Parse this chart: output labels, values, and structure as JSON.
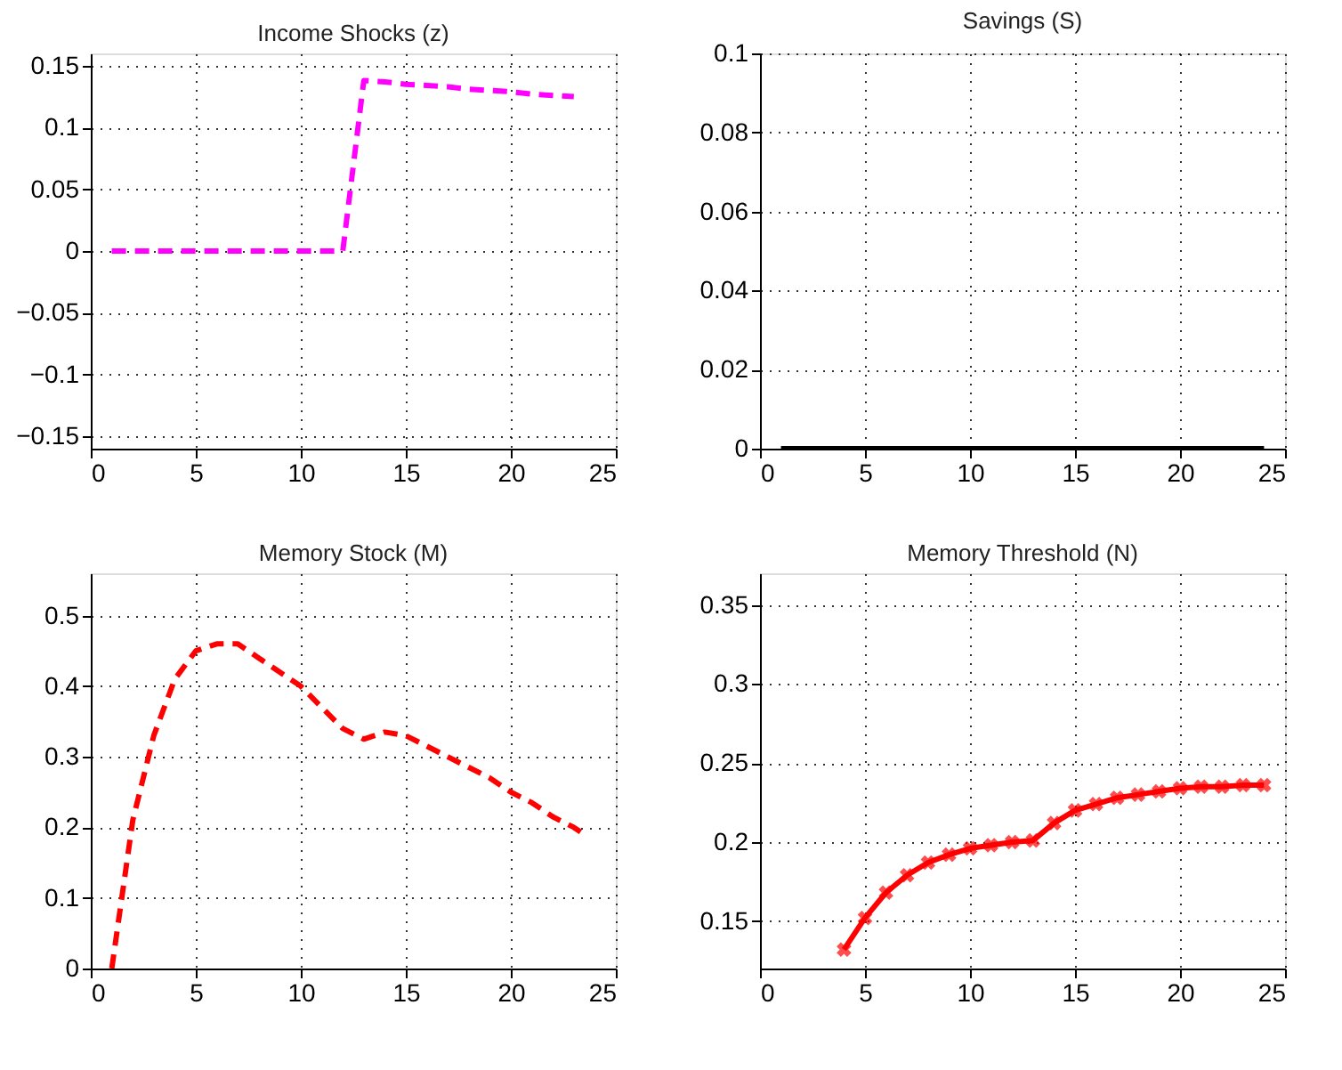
{
  "chart_data": [
    {
      "type": "line",
      "title": "Income Shocks (z)",
      "x": [
        1,
        2,
        3,
        4,
        5,
        6,
        7,
        8,
        9,
        10,
        11,
        12,
        13,
        14,
        15,
        16,
        17,
        18,
        19,
        20,
        21,
        22,
        23
      ],
      "series": [
        {
          "color": "#ff00ff",
          "values": [
            0,
            0,
            0,
            0,
            0,
            0,
            0,
            0,
            0,
            0,
            0,
            0,
            0.138,
            0.137,
            0.135,
            0.134,
            0.133,
            0.131,
            0.13,
            0.129,
            0.127,
            0.126,
            0.125
          ]
        }
      ],
      "xlim": [
        0,
        25
      ],
      "xticks": [
        0,
        5,
        10,
        15,
        20,
        25
      ],
      "ylim": [
        -0.16,
        0.16
      ],
      "yticks": [
        -0.15,
        -0.1,
        -0.05,
        0,
        0.05,
        0.1,
        0.15
      ],
      "grid": true,
      "line_style": "dashed",
      "marker": "none"
    },
    {
      "type": "line",
      "title": "Savings (S)",
      "x": [
        1,
        2,
        3,
        4,
        5,
        6,
        7,
        8,
        9,
        10,
        11,
        12,
        13,
        14,
        15,
        16,
        17,
        18,
        19,
        20,
        21,
        22,
        23,
        24
      ],
      "series": [
        {
          "color": "#000000",
          "values": [
            0,
            0,
            0,
            0,
            0,
            0,
            0,
            0,
            0,
            0,
            0,
            0,
            0,
            0,
            0,
            0,
            0,
            0,
            0,
            0,
            0,
            0,
            0,
            0
          ]
        }
      ],
      "xlim": [
        0,
        25
      ],
      "xticks": [
        0,
        5,
        10,
        15,
        20,
        25
      ],
      "ylim": [
        0,
        0.1
      ],
      "yticks": [
        0,
        0.02,
        0.04,
        0.06,
        0.08,
        0.1
      ],
      "grid": true,
      "line_style": "solid",
      "marker": "none"
    },
    {
      "type": "line",
      "title": "Memory Stock (M)",
      "x": [
        1,
        2,
        3,
        4,
        5,
        6,
        7,
        8,
        9,
        10,
        11,
        12,
        13,
        14,
        15,
        16,
        17,
        18,
        19,
        20,
        21,
        22,
        23,
        23.5
      ],
      "series": [
        {
          "color": "#ff0000",
          "values": [
            0,
            0.21,
            0.33,
            0.41,
            0.45,
            0.46,
            0.46,
            0.44,
            0.42,
            0.4,
            0.37,
            0.34,
            0.325,
            0.335,
            0.33,
            0.315,
            0.3,
            0.285,
            0.27,
            0.25,
            0.235,
            0.215,
            0.2,
            0.19
          ]
        }
      ],
      "xlim": [
        0,
        25
      ],
      "xticks": [
        0,
        5,
        10,
        15,
        20,
        25
      ],
      "ylim": [
        0,
        0.56
      ],
      "yticks": [
        0,
        0.1,
        0.2,
        0.3,
        0.4,
        0.5
      ],
      "grid": true,
      "line_style": "dashed",
      "marker": "none"
    },
    {
      "type": "line",
      "title": "Memory Threshold (N)",
      "x": [
        4,
        5,
        6,
        7,
        8,
        9,
        10,
        11,
        12,
        13,
        14,
        15,
        16,
        17,
        18,
        19,
        20,
        21,
        22,
        23,
        24
      ],
      "series": [
        {
          "color": "#ff0000",
          "values": [
            0.132,
            0.152,
            0.168,
            0.179,
            0.187,
            0.192,
            0.196,
            0.198,
            0.2,
            0.201,
            0.212,
            0.22,
            0.224,
            0.228,
            0.23,
            0.232,
            0.234,
            0.235,
            0.235,
            0.236,
            0.236
          ]
        }
      ],
      "xlim": [
        0,
        25
      ],
      "xticks": [
        0,
        5,
        10,
        15,
        20,
        25
      ],
      "ylim": [
        0.12,
        0.37
      ],
      "yticks": [
        0.15,
        0.2,
        0.25,
        0.3,
        0.35
      ],
      "grid": true,
      "line_style": "solid",
      "marker": "cross"
    }
  ]
}
